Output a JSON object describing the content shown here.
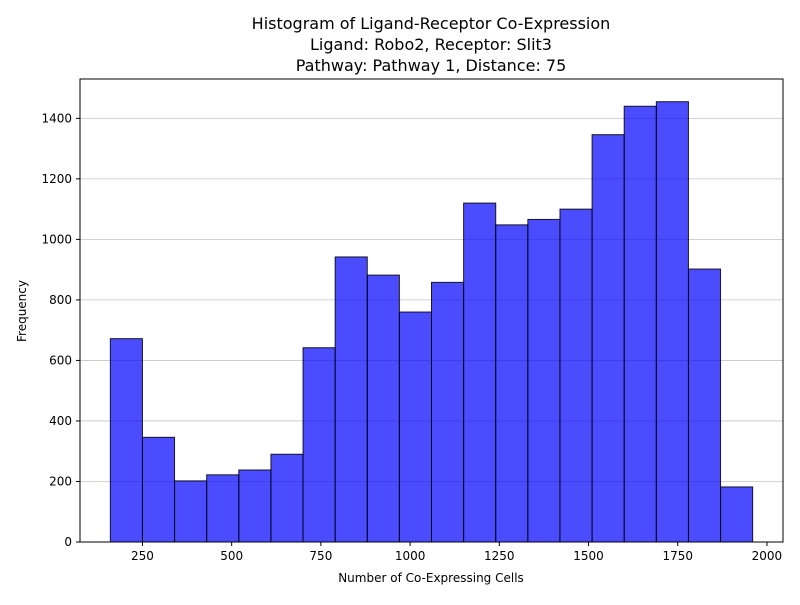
{
  "chart_data": {
    "type": "bar",
    "title_lines": [
      "Histogram of Ligand-Receptor Co-Expression",
      "Ligand: Robo2, Receptor: Slit3",
      "Pathway: Pathway 1, Distance: 75"
    ],
    "xlabel": "Number of Co-Expressing Cells",
    "ylabel": "Frequency",
    "xlim": [
      75,
      2045
    ],
    "ylim": [
      0,
      1530
    ],
    "xticks": [
      250,
      500,
      750,
      1000,
      1250,
      1500,
      1750,
      2000
    ],
    "yticks": [
      0,
      200,
      400,
      600,
      800,
      1000,
      1200,
      1400
    ],
    "grid": "y-axis",
    "bar_color": "#0000ff",
    "bar_alpha": 0.7,
    "bar_edge_color": "#000000",
    "bins": {
      "start": 160,
      "end": 1960,
      "edges": [
        160,
        250,
        340,
        430,
        520,
        610,
        700,
        790,
        880,
        970,
        1060,
        1150,
        1240,
        1330,
        1420,
        1510,
        1600,
        1690,
        1780,
        1870,
        1960
      ],
      "counts": [
        672,
        346,
        202,
        222,
        238,
        290,
        642,
        942,
        882,
        760,
        858,
        1120,
        1048,
        1066,
        1100,
        1346,
        1440,
        1455,
        902,
        182
      ]
    }
  }
}
